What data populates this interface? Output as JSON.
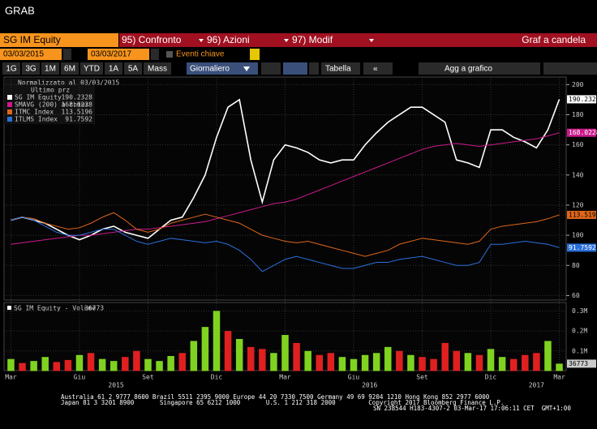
{
  "header": {
    "title": "GRAB"
  },
  "toolbar": {
    "security": "SG IM Equity",
    "menus": [
      "95) Confronto",
      "96) Azioni",
      "97) Modif"
    ],
    "chart_type": "Graf a candela",
    "start_date": "03/03/2015",
    "end_date": "03/03/2017",
    "events": "Eventi chiave",
    "periods": [
      "1G",
      "3G",
      "1M",
      "6M",
      "YTD",
      "1A",
      "5A",
      "Mass"
    ],
    "frequency": "Giornaliero",
    "table": "Tabella",
    "add": "Agg a grafico"
  },
  "legend_heading": [
    "Normalizzato al 03/03/2015",
    "Ultimo prz"
  ],
  "chart_data": [
    {
      "type": "line",
      "xlim": [
        -0.3,
        24.3
      ],
      "ylim": [
        57,
        205
      ],
      "yticks": [
        60,
        80,
        100,
        120,
        140,
        160,
        180,
        200
      ],
      "xticks": [
        {
          "value": 0,
          "label": "Mar"
        },
        {
          "value": 3,
          "label": "Giu"
        },
        {
          "value": 6,
          "label": "Set"
        },
        {
          "value": 9,
          "label": "Dic"
        },
        {
          "value": 12,
          "label": "Mar"
        },
        {
          "value": 15,
          "label": "Giu"
        },
        {
          "value": 18,
          "label": "Set"
        },
        {
          "value": 21,
          "label": "Dic"
        },
        {
          "value": 24,
          "label": "Mar"
        }
      ],
      "year_labels": [
        {
          "value": 4.6,
          "label": "2015"
        },
        {
          "value": 15.7,
          "label": "2016"
        },
        {
          "value": 23,
          "label": "2017"
        }
      ],
      "grid": true,
      "x": [
        0,
        0.5,
        1,
        1.5,
        2,
        2.5,
        3,
        3.5,
        4,
        4.5,
        5,
        5.5,
        6,
        6.5,
        7,
        7.5,
        8,
        8.5,
        9,
        9.5,
        10,
        10.5,
        11,
        11.5,
        12,
        12.5,
        13,
        13.5,
        14,
        14.5,
        15,
        15.5,
        16,
        16.5,
        17,
        17.5,
        18,
        18.5,
        19,
        19.5,
        20,
        20.5,
        21,
        21.5,
        22,
        22.5,
        23,
        23.5,
        24
      ],
      "series": [
        {
          "name": "SG IM Equity",
          "color": "#ffffff",
          "values": [
            110,
            112,
            110,
            108,
            104,
            100,
            97,
            100,
            104,
            106,
            102,
            100,
            98,
            104,
            110,
            112,
            125,
            140,
            165,
            185,
            190,
            150,
            122,
            150,
            160,
            158,
            155,
            150,
            148,
            150,
            150,
            160,
            168,
            175,
            180,
            185,
            185,
            180,
            175,
            150,
            148,
            145,
            170,
            170,
            165,
            162,
            158,
            170,
            190.2328
          ]
        },
        {
          "name": "SMAVG (200) a chius",
          "color": "#cc1a8c",
          "values": [
            94,
            95,
            96,
            97,
            98,
            99,
            100,
            100,
            101,
            102,
            103,
            104,
            104,
            105,
            106,
            107,
            108,
            109,
            111,
            113,
            115,
            117,
            119,
            121,
            122,
            124,
            127,
            130,
            133,
            136,
            139,
            142,
            145,
            148,
            151,
            154,
            157,
            159,
            160,
            161,
            160,
            159,
            160,
            161,
            162,
            163,
            164,
            166,
            168.0228
          ]
        },
        {
          "name": "ITMC Index",
          "color": "#e0661a",
          "values": [
            110,
            112,
            111,
            108,
            106,
            104,
            105,
            108,
            112,
            115,
            110,
            104,
            102,
            104,
            108,
            110,
            112,
            114,
            112,
            110,
            108,
            104,
            100,
            98,
            96,
            95,
            96,
            94,
            92,
            90,
            88,
            86,
            88,
            90,
            94,
            96,
            98,
            97,
            96,
            95,
            94,
            96,
            104,
            106,
            107,
            108,
            109,
            111,
            113.5196
          ]
        },
        {
          "name": "ITLMS Index",
          "color": "#2a6fdb",
          "values": [
            110,
            112,
            110,
            106,
            102,
            100,
            100,
            102,
            104,
            104,
            100,
            96,
            94,
            96,
            98,
            97,
            96,
            95,
            96,
            94,
            90,
            84,
            76,
            80,
            84,
            86,
            84,
            82,
            80,
            78,
            78,
            80,
            82,
            82,
            84,
            85,
            86,
            84,
            82,
            80,
            80,
            82,
            94,
            94,
            95,
            96,
            95,
            94,
            91.7592
          ]
        }
      ]
    },
    {
      "type": "bar",
      "title": "SG IM Equity - Volume",
      "xlim": [
        -0.3,
        24.3
      ],
      "ylim": [
        0,
        330000
      ],
      "yticks": [
        {
          "value": 100000,
          "label": "0.1M"
        },
        {
          "value": 200000,
          "label": "0.2M"
        },
        {
          "value": 300000,
          "label": "0.3M"
        }
      ],
      "x": [
        0,
        0.5,
        1,
        1.5,
        2,
        2.5,
        3,
        3.5,
        4,
        4.5,
        5,
        5.5,
        6,
        6.5,
        7,
        7.5,
        8,
        8.5,
        9,
        9.5,
        10,
        10.5,
        11,
        11.5,
        12,
        12.5,
        13,
        13.5,
        14,
        14.5,
        15,
        15.5,
        16,
        16.5,
        17,
        17.5,
        18,
        18.5,
        19,
        19.5,
        20,
        20.5,
        21,
        21.5,
        22,
        22.5,
        23,
        23.5,
        24
      ],
      "values": [
        60000,
        40000,
        50000,
        70000,
        45000,
        55000,
        80000,
        90000,
        60000,
        50000,
        70000,
        100000,
        60000,
        50000,
        75000,
        90000,
        150000,
        220000,
        300000,
        200000,
        160000,
        120000,
        110000,
        90000,
        180000,
        140000,
        100000,
        80000,
        90000,
        70000,
        60000,
        80000,
        90000,
        120000,
        100000,
        80000,
        70000,
        60000,
        140000,
        100000,
        90000,
        80000,
        110000,
        70000,
        60000,
        80000,
        90000,
        150000,
        36773
      ],
      "colors": [
        "#7fd320",
        "#e02020",
        "#7fd320",
        "#7fd320",
        "#e02020",
        "#e02020",
        "#7fd320",
        "#e02020",
        "#7fd320",
        "#7fd320",
        "#e02020",
        "#e02020",
        "#7fd320",
        "#7fd320",
        "#7fd320",
        "#e02020",
        "#7fd320",
        "#7fd320",
        "#7fd320",
        "#e02020",
        "#7fd320",
        "#e02020",
        "#e02020",
        "#7fd320",
        "#7fd320",
        "#e02020",
        "#7fd320",
        "#e02020",
        "#e02020",
        "#7fd320",
        "#7fd320",
        "#7fd320",
        "#7fd320",
        "#7fd320",
        "#e02020",
        "#7fd320",
        "#e02020",
        "#e02020",
        "#e02020",
        "#e02020",
        "#7fd320",
        "#e02020",
        "#7fd320",
        "#7fd320",
        "#e02020",
        "#e02020",
        "#e02020",
        "#7fd320",
        "#7fd320"
      ]
    }
  ],
  "footer": [
    "Australia 61 2 9777 8600 Brazil 5511 2395 9000 Europe 44 20 7330 7500 Germany 49 69 9204 1210 Hong Kong 852 2977 6000",
    "Japan 81 3 3201 8900       Singapore 65 6212 1000       U.S. 1 212 318 2000         Copyright 2017 Bloomberg Finance L.P.",
    "SN 238544 H183-4307-2 03-Mar-17 17:06:11 CET  GMT+1:00"
  ]
}
